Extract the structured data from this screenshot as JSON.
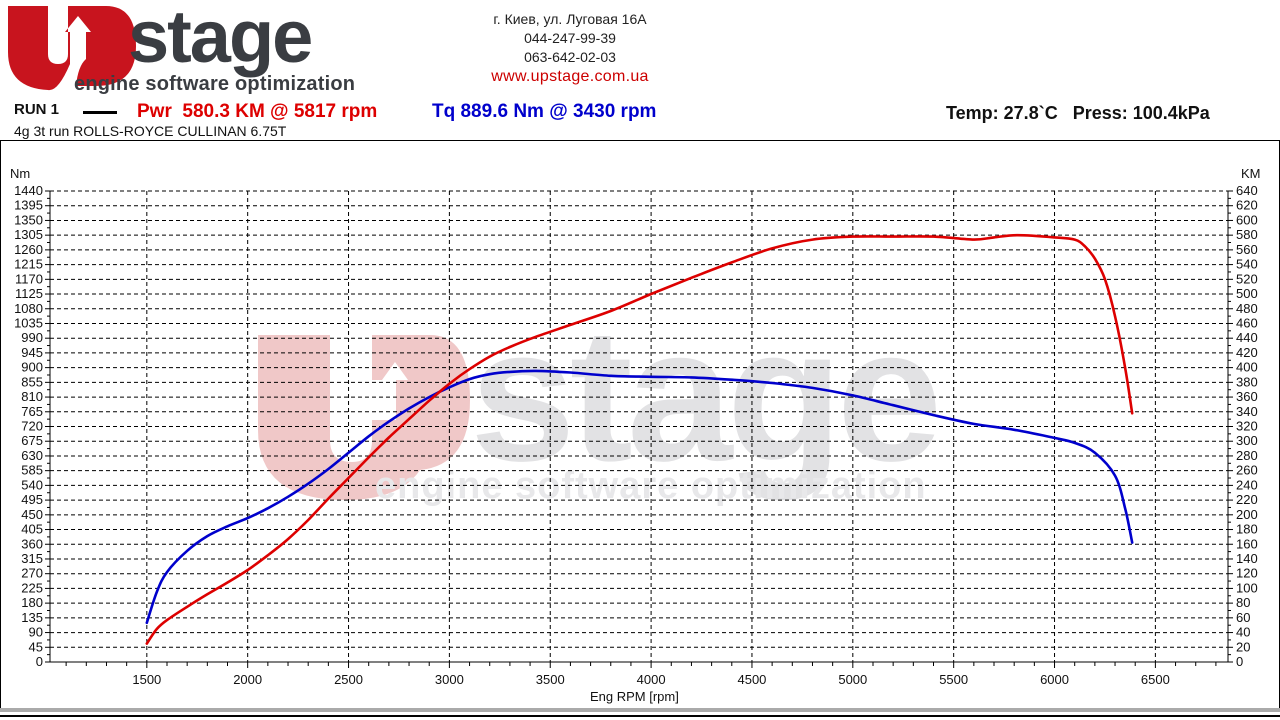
{
  "header": {
    "logo": {
      "brand_prefix": "U",
      "brand_word": "stage",
      "tagline": "engine software optimization",
      "colors": {
        "red": "#c8141e",
        "dark": "#3a3d42"
      }
    },
    "contact": {
      "address": "г. Киев, ул. Луговая 16А",
      "phone1": "044-247-99-39",
      "phone2": "063-642-02-03",
      "website": "www.upstage.com.ua"
    }
  },
  "run": {
    "label": "RUN 1",
    "power_summary": "Pwr  580.3 KM @ 5817 rpm",
    "torque_summary": "Tq 889.6 Nm @ 3430 rpm",
    "conditions": "Temp: 27.8`C   Press: 100.4kPa",
    "description": "4g 3t run ROLLS-ROYCE CULLINAN 6.75T"
  },
  "chart_data": {
    "type": "line",
    "title": "4g 3t run ROLLS-ROYCE CULLINAN 6.75T",
    "xlabel": "Eng RPM [rpm]",
    "ylabel_left": "Nm",
    "ylabel_right": "KM",
    "xlim": [
      1020,
      6860
    ],
    "ylim_left": [
      0,
      1440
    ],
    "ylim_right": [
      0,
      640
    ],
    "x_ticks": [
      1500,
      2000,
      2500,
      3000,
      3500,
      4000,
      4500,
      5000,
      5500,
      6000,
      6500
    ],
    "y_ticks_left": [
      0,
      45,
      90,
      135,
      180,
      225,
      270,
      315,
      360,
      405,
      450,
      495,
      540,
      585,
      630,
      675,
      720,
      765,
      810,
      855,
      900,
      945,
      990,
      1035,
      1080,
      1125,
      1170,
      1215,
      1260,
      1305,
      1350,
      1395,
      1440
    ],
    "y_ticks_right": [
      0,
      20,
      40,
      60,
      80,
      100,
      120,
      140,
      160,
      180,
      200,
      220,
      240,
      260,
      280,
      300,
      320,
      340,
      360,
      380,
      400,
      420,
      440,
      460,
      480,
      500,
      520,
      540,
      560,
      580,
      600,
      620,
      640
    ],
    "grid": true,
    "watermark": "Upstage engine software optimization",
    "series": [
      {
        "name": "Tq",
        "unit": "Nm",
        "axis": "left",
        "color": "#0000cc",
        "peak": {
          "value": 889.6,
          "rpm": 3430
        },
        "x": [
          1500,
          1550,
          1600,
          1700,
          1800,
          1900,
          2000,
          2100,
          2200,
          2300,
          2400,
          2500,
          2600,
          2700,
          2800,
          2900,
          3000,
          3100,
          3200,
          3300,
          3430,
          3600,
          3800,
          4000,
          4200,
          4400,
          4600,
          4800,
          5000,
          5200,
          5400,
          5600,
          5800,
          6000,
          6100,
          6200,
          6300,
          6350,
          6385
        ],
        "values": [
          120,
          215,
          275,
          340,
          385,
          415,
          440,
          470,
          505,
          545,
          590,
          640,
          690,
          735,
          775,
          810,
          840,
          865,
          880,
          887,
          890,
          885,
          875,
          872,
          870,
          863,
          853,
          838,
          815,
          785,
          755,
          728,
          710,
          685,
          670,
          640,
          570,
          470,
          365
        ]
      },
      {
        "name": "Pwr",
        "unit": "KM",
        "axis": "right",
        "color": "#dd0000",
        "peak": {
          "value": 580.3,
          "rpm": 5817
        },
        "x": [
          1500,
          1550,
          1600,
          1700,
          1800,
          1900,
          2000,
          2100,
          2200,
          2300,
          2400,
          2500,
          2600,
          2700,
          2800,
          2900,
          3000,
          3100,
          3200,
          3300,
          3430,
          3600,
          3800,
          4000,
          4200,
          4400,
          4600,
          4800,
          5000,
          5200,
          5400,
          5600,
          5700,
          5817,
          6000,
          6100,
          6150,
          6200,
          6250,
          6300,
          6350,
          6385
        ],
        "values": [
          25,
          45,
          57,
          75,
          92,
          108,
          125,
          145,
          167,
          193,
          222,
          250,
          278,
          305,
          330,
          355,
          378,
          398,
          415,
          428,
          442,
          458,
          477,
          500,
          522,
          543,
          562,
          574,
          578,
          578,
          578,
          574,
          577,
          580,
          577,
          574,
          565,
          548,
          520,
          470,
          400,
          338
        ]
      }
    ]
  }
}
